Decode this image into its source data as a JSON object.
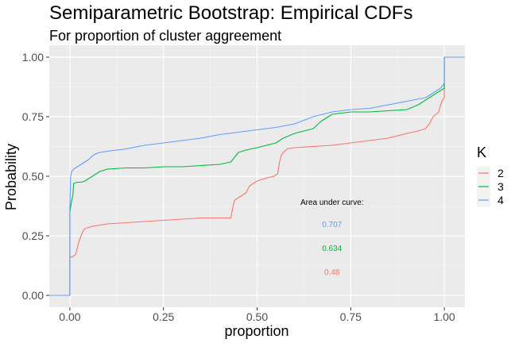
{
  "chart_data": {
    "type": "line",
    "title": "Semiparametric Bootstrap: Empirical CDFs",
    "subtitle": "For proportion of cluster aggreement",
    "xlabel": "proportion",
    "ylabel": "Probability",
    "xlim": [
      -0.055,
      1.055
    ],
    "ylim": [
      -0.05,
      1.05
    ],
    "x_ticks": [
      0,
      0.25,
      0.5,
      0.75,
      1
    ],
    "x_tick_labels": [
      "0.00",
      "0.25",
      "0.50",
      "0.75",
      "1.00"
    ],
    "y_ticks": [
      0,
      0.25,
      0.5,
      0.75,
      1
    ],
    "y_tick_labels": [
      "0.00",
      "0.25",
      "0.50",
      "0.75",
      "1.00"
    ],
    "grid": true,
    "legend": {
      "title": "K",
      "position": "right",
      "entries": [
        "2",
        "3",
        "4"
      ]
    },
    "annotations": {
      "header": "Area under curve:",
      "values": [
        {
          "label": "0.707",
          "color": "#619CFF"
        },
        {
          "label": "0.634",
          "color": "#00BA38"
        },
        {
          "label": "0.48",
          "color": "#F8766D"
        }
      ],
      "x": 0.7,
      "y_header": 0.39,
      "y_values": [
        0.3,
        0.2,
        0.1
      ]
    },
    "series": [
      {
        "name": "2",
        "color": "#F8766D",
        "x": [
          -0.06,
          0.0,
          0.0,
          0.005,
          0.015,
          0.02,
          0.025,
          0.03,
          0.035,
          0.04,
          0.05,
          0.06,
          0.08,
          0.1,
          0.15,
          0.2,
          0.25,
          0.3,
          0.35,
          0.4,
          0.42,
          0.43,
          0.435,
          0.44,
          0.45,
          0.47,
          0.48,
          0.49,
          0.5,
          0.53,
          0.545,
          0.555,
          0.56,
          0.565,
          0.57,
          0.58,
          0.6,
          0.7,
          0.75,
          0.8,
          0.85,
          0.9,
          0.93,
          0.95,
          0.96,
          0.97,
          0.985,
          0.99,
          0.995,
          1.0,
          1.0,
          1.06
        ],
        "y": [
          0.0,
          0.0,
          0.16,
          0.16,
          0.17,
          0.2,
          0.23,
          0.25,
          0.27,
          0.28,
          0.285,
          0.29,
          0.295,
          0.3,
          0.305,
          0.31,
          0.315,
          0.32,
          0.325,
          0.325,
          0.325,
          0.325,
          0.37,
          0.4,
          0.41,
          0.43,
          0.46,
          0.47,
          0.48,
          0.495,
          0.5,
          0.51,
          0.56,
          0.59,
          0.6,
          0.615,
          0.62,
          0.63,
          0.64,
          0.65,
          0.66,
          0.68,
          0.69,
          0.7,
          0.72,
          0.75,
          0.77,
          0.8,
          0.82,
          0.83,
          1.0,
          1.0
        ]
      },
      {
        "name": "3",
        "color": "#00BA38",
        "x": [
          -0.06,
          0.0,
          0.0,
          0.005,
          0.008,
          0.01,
          0.02,
          0.03,
          0.04,
          0.05,
          0.06,
          0.08,
          0.1,
          0.15,
          0.2,
          0.25,
          0.3,
          0.35,
          0.4,
          0.43,
          0.44,
          0.45,
          0.47,
          0.5,
          0.55,
          0.57,
          0.6,
          0.65,
          0.67,
          0.7,
          0.75,
          0.8,
          0.85,
          0.9,
          0.93,
          0.95,
          0.97,
          0.99,
          1.0,
          1.0,
          1.06
        ],
        "y": [
          0.0,
          0.0,
          0.35,
          0.4,
          0.42,
          0.47,
          0.475,
          0.475,
          0.48,
          0.49,
          0.5,
          0.52,
          0.53,
          0.535,
          0.535,
          0.54,
          0.54,
          0.545,
          0.55,
          0.56,
          0.58,
          0.6,
          0.61,
          0.62,
          0.64,
          0.66,
          0.68,
          0.7,
          0.73,
          0.76,
          0.77,
          0.77,
          0.775,
          0.78,
          0.8,
          0.82,
          0.84,
          0.86,
          0.87,
          1.0,
          1.0
        ]
      },
      {
        "name": "4",
        "color": "#619CFF",
        "x": [
          -0.06,
          0.0,
          0.0,
          0.002,
          0.005,
          0.01,
          0.02,
          0.03,
          0.04,
          0.05,
          0.06,
          0.07,
          0.08,
          0.1,
          0.15,
          0.2,
          0.25,
          0.3,
          0.35,
          0.4,
          0.45,
          0.5,
          0.55,
          0.6,
          0.65,
          0.7,
          0.75,
          0.8,
          0.85,
          0.9,
          0.95,
          0.97,
          0.99,
          1.0,
          1.0,
          1.06
        ],
        "y": [
          0.0,
          0.0,
          0.37,
          0.5,
          0.52,
          0.53,
          0.54,
          0.55,
          0.56,
          0.57,
          0.585,
          0.595,
          0.6,
          0.605,
          0.615,
          0.63,
          0.64,
          0.65,
          0.66,
          0.675,
          0.685,
          0.695,
          0.705,
          0.72,
          0.75,
          0.77,
          0.78,
          0.785,
          0.8,
          0.815,
          0.83,
          0.85,
          0.87,
          0.89,
          1.0,
          1.0
        ]
      }
    ]
  }
}
